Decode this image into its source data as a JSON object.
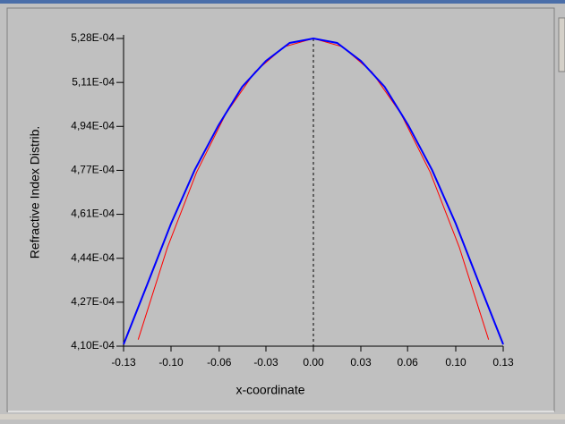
{
  "chart_data": {
    "type": "line",
    "y_label": "Refractive Index Distrib.",
    "x_label": "x-coordinate",
    "xlim": [
      -0.13,
      0.13
    ],
    "ylim": [
      0.00041,
      0.000528
    ],
    "xticks": [
      -0.13,
      {
        "value": -0.0975,
        "label": "-0.10"
      },
      {
        "value": -0.0645,
        "label": "-0.06"
      },
      {
        "value": -0.0325,
        "label": "-0.03"
      },
      {
        "value": 0,
        "label": "0.00"
      },
      {
        "value": 0.0325,
        "label": "0.03"
      },
      {
        "value": 0.0645,
        "label": "0.06"
      },
      {
        "value": 0.0975,
        "label": "0.10"
      },
      0.13
    ],
    "yticks": [
      {
        "value": 0.00041,
        "label": "4,10E-04"
      },
      {
        "value": 0.00042686,
        "label": "4,27E-04"
      },
      {
        "value": 0.00044371,
        "label": "4,44E-04"
      },
      {
        "value": 0.00046057,
        "label": "4,61E-04"
      },
      {
        "value": 0.00047743,
        "label": "4,77E-04"
      },
      {
        "value": 0.00049429,
        "label": "4,94E-04"
      },
      {
        "value": 0.00051114,
        "label": "5,11E-04"
      },
      {
        "value": 0.000528,
        "label": "5,28E-04"
      }
    ],
    "vline_x": 0,
    "grid": false,
    "series": [
      {
        "color": "#ff0000",
        "x": [
          -0.12,
          -0.1,
          -0.08,
          -0.06,
          -0.04,
          -0.02,
          0,
          0.02,
          0.04,
          0.06,
          0.08,
          0.1,
          0.12
        ],
        "values": [
          0.0004125,
          0.0004478,
          0.0004767,
          0.0004991,
          0.0005152,
          0.0005248,
          0.000528,
          0.0005248,
          0.0005152,
          0.0004991,
          0.0004767,
          0.0004478,
          0.0004125
        ]
      },
      {
        "color": "#0000ff",
        "x": [
          -0.13,
          -0.11375,
          -0.0975,
          -0.08125,
          -0.065,
          -0.04875,
          -0.0325,
          -0.01625,
          0,
          0.01625,
          0.0325,
          0.04875,
          0.065,
          0.08125,
          0.0975,
          0.11375,
          0.13
        ],
        "values": [
          0.0004107,
          0.0004337,
          0.000457,
          0.0004776,
          0.0004947,
          0.0005095,
          0.0005194,
          0.0005263,
          0.000528,
          0.0005263,
          0.0005194,
          0.0005095,
          0.0004947,
          0.0004776,
          0.000457,
          0.0004337,
          0.0004107
        ]
      }
    ]
  }
}
